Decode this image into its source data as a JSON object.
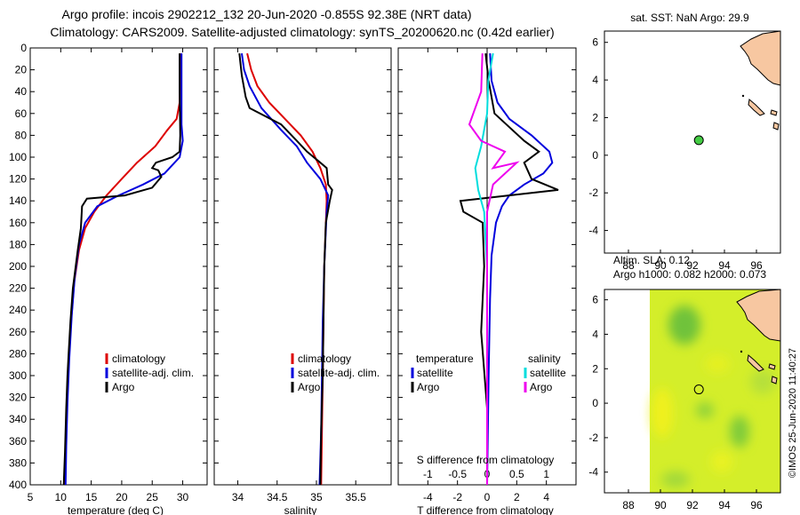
{
  "title": {
    "line1": "Argo profile: incois 2902212_132 20-Jun-2020 -0.855S 92.38E (NRT data)",
    "line2": "Climatology: CARS2009. Satellite-adjusted climatology: synTS_20200620.nc (0.42d earlier)"
  },
  "colors": {
    "climatology": "#dd0000",
    "satellite": "#0000dd",
    "argo": "#000000",
    "sat_salinity": "#00dddd",
    "argo_salinity": "#ee00ee",
    "land": "#f7c7a1",
    "argo_marker": "#44cc44"
  },
  "chart_data": [
    {
      "id": "temperature",
      "type": "line",
      "xlabel": "temperature (deg C)",
      "ylabel": "",
      "xlim": [
        5,
        34
      ],
      "ylim": [
        400,
        0
      ],
      "x_ticks": [
        5,
        10,
        15,
        20,
        25,
        30
      ],
      "y_ticks": [
        0,
        20,
        40,
        60,
        80,
        100,
        120,
        140,
        160,
        180,
        200,
        220,
        240,
        260,
        280,
        300,
        320,
        340,
        360,
        380,
        400
      ],
      "legend": [
        "climatology",
        "satellite-adj. clim.",
        "Argo"
      ],
      "series": [
        {
          "name": "climatology",
          "color": "#dd0000",
          "points": [
            [
              29.6,
              5
            ],
            [
              29.6,
              30
            ],
            [
              29.5,
              50
            ],
            [
              29.0,
              65
            ],
            [
              27.5,
              75
            ],
            [
              25.5,
              90
            ],
            [
              22.5,
              105
            ],
            [
              20.0,
              120
            ],
            [
              17.5,
              135
            ],
            [
              15.5,
              150
            ],
            [
              14.0,
              165
            ],
            [
              13.0,
              185
            ],
            [
              12.2,
              215
            ],
            [
              11.7,
              250
            ],
            [
              11.3,
              290
            ],
            [
              11.0,
              330
            ],
            [
              10.8,
              370
            ],
            [
              10.6,
              400
            ]
          ]
        },
        {
          "name": "satellite-adj. clim.",
          "color": "#0000dd",
          "points": [
            [
              29.8,
              5
            ],
            [
              29.8,
              40
            ],
            [
              29.8,
              70
            ],
            [
              30.0,
              85
            ],
            [
              29.5,
              100
            ],
            [
              27.0,
              115
            ],
            [
              23.5,
              125
            ],
            [
              19.5,
              135
            ],
            [
              16.0,
              145
            ],
            [
              14.0,
              160
            ],
            [
              13.0,
              180
            ],
            [
              12.3,
              210
            ],
            [
              11.8,
              245
            ],
            [
              11.4,
              285
            ],
            [
              11.1,
              325
            ],
            [
              10.9,
              365
            ],
            [
              10.8,
              400
            ]
          ]
        },
        {
          "name": "Argo",
          "color": "#000000",
          "points": [
            [
              29.5,
              5
            ],
            [
              29.5,
              40
            ],
            [
              29.6,
              80
            ],
            [
              29.5,
              95
            ],
            [
              28.3,
              100
            ],
            [
              25.6,
              105
            ],
            [
              25.0,
              110
            ],
            [
              26.0,
              112
            ],
            [
              26.5,
              118
            ],
            [
              25.0,
              128
            ],
            [
              20.5,
              135
            ],
            [
              14.3,
              138
            ],
            [
              13.5,
              145
            ],
            [
              13.3,
              165
            ],
            [
              12.8,
              185
            ],
            [
              12.0,
              220
            ],
            [
              11.6,
              250
            ],
            [
              11.3,
              280
            ],
            [
              11.1,
              300
            ],
            [
              10.9,
              330
            ],
            [
              10.7,
              370
            ],
            [
              10.5,
              400
            ]
          ]
        }
      ]
    },
    {
      "id": "salinity",
      "type": "line",
      "xlabel": "salinity",
      "ylabel": "",
      "xlim": [
        33.7,
        35.95
      ],
      "ylim": [
        400,
        0
      ],
      "x_ticks": [
        34,
        34.5,
        35,
        35.5
      ],
      "y_ticks": [
        0,
        20,
        40,
        60,
        80,
        100,
        120,
        140,
        160,
        180,
        200,
        220,
        240,
        260,
        280,
        300,
        320,
        340,
        360,
        380,
        400
      ],
      "legend": [
        "climatology",
        "satellite-adj. clim.",
        "Argo"
      ],
      "series": [
        {
          "name": "climatology",
          "color": "#dd0000",
          "points": [
            [
              34.12,
              5
            ],
            [
              34.17,
              20
            ],
            [
              34.25,
              35
            ],
            [
              34.4,
              50
            ],
            [
              34.6,
              65
            ],
            [
              34.8,
              80
            ],
            [
              34.95,
              95
            ],
            [
              35.05,
              110
            ],
            [
              35.12,
              125
            ],
            [
              35.13,
              140
            ],
            [
              35.12,
              160
            ],
            [
              35.1,
              200
            ],
            [
              35.09,
              250
            ],
            [
              35.08,
              300
            ],
            [
              35.07,
              350
            ],
            [
              35.06,
              400
            ]
          ]
        },
        {
          "name": "satellite-adj. clim.",
          "color": "#0000dd",
          "points": [
            [
              34.05,
              5
            ],
            [
              34.08,
              20
            ],
            [
              34.15,
              35
            ],
            [
              34.3,
              55
            ],
            [
              34.55,
              75
            ],
            [
              34.75,
              90
            ],
            [
              34.88,
              105
            ],
            [
              35.05,
              120
            ],
            [
              35.15,
              135
            ],
            [
              35.13,
              150
            ],
            [
              35.1,
              200
            ],
            [
              35.08,
              250
            ],
            [
              35.07,
              300
            ],
            [
              35.06,
              350
            ],
            [
              35.04,
              400
            ]
          ]
        },
        {
          "name": "Argo",
          "color": "#000000",
          "points": [
            [
              34.02,
              5
            ],
            [
              34.05,
              25
            ],
            [
              34.1,
              45
            ],
            [
              34.15,
              55
            ],
            [
              34.55,
              70
            ],
            [
              34.75,
              85
            ],
            [
              34.88,
              95
            ],
            [
              35.05,
              105
            ],
            [
              35.13,
              110
            ],
            [
              35.15,
              125
            ],
            [
              35.2,
              130
            ],
            [
              35.17,
              140
            ],
            [
              35.12,
              160
            ],
            [
              35.1,
              200
            ],
            [
              35.09,
              250
            ],
            [
              35.08,
              300
            ],
            [
              35.06,
              350
            ],
            [
              35.05,
              400
            ]
          ]
        }
      ]
    },
    {
      "id": "difference",
      "type": "line",
      "xlabel": "T difference from climatology",
      "xlabel_top": "S difference from climatology",
      "xlim": [
        -6,
        6
      ],
      "x_ticks": [
        -4,
        -2,
        0,
        2,
        4
      ],
      "top_xlim": [
        -1.5,
        1.5
      ],
      "top_ticks": [
        -1,
        -0.5,
        0,
        0.5,
        1
      ],
      "ylim": [
        400,
        0
      ],
      "legend_temperature_title": "temperature",
      "legend_salinity_title": "salinity",
      "legend_temperature": [
        "satellite",
        "Argo"
      ],
      "legend_salinity": [
        "satellite",
        "Argo"
      ],
      "series": [
        {
          "name": "T satellite",
          "axis": "bottom",
          "color": "#0000dd",
          "points": [
            [
              0.2,
              5
            ],
            [
              0.3,
              30
            ],
            [
              0.7,
              50
            ],
            [
              1.5,
              65
            ],
            [
              3.0,
              80
            ],
            [
              4.2,
              95
            ],
            [
              4.4,
              105
            ],
            [
              3.8,
              115
            ],
            [
              2.5,
              125
            ],
            [
              1.5,
              135
            ],
            [
              1.0,
              145
            ],
            [
              0.6,
              160
            ],
            [
              0.3,
              190
            ],
            [
              0.2,
              230
            ],
            [
              0.1,
              300
            ],
            [
              0.0,
              400
            ]
          ]
        },
        {
          "name": "T Argo",
          "axis": "bottom",
          "color": "#000000",
          "points": [
            [
              -0.1,
              5
            ],
            [
              0.1,
              30
            ],
            [
              0.5,
              60
            ],
            [
              2.5,
              85
            ],
            [
              3.5,
              95
            ],
            [
              2.5,
              105
            ],
            [
              3.0,
              120
            ],
            [
              4.8,
              130
            ],
            [
              -1.8,
              140
            ],
            [
              -1.6,
              150
            ],
            [
              -0.3,
              160
            ],
            [
              -0.2,
              200
            ],
            [
              -0.4,
              260
            ],
            [
              0.0,
              330
            ],
            [
              0.0,
              400
            ]
          ]
        },
        {
          "name": "S satellite",
          "axis": "top",
          "color": "#00dddd",
          "points": [
            [
              0.1,
              5
            ],
            [
              0.02,
              30
            ],
            [
              0.0,
              60
            ],
            [
              -0.1,
              90
            ],
            [
              -0.2,
              110
            ],
            [
              -0.15,
              130
            ],
            [
              -0.05,
              150
            ],
            [
              0.0,
              200
            ],
            [
              0.0,
              300
            ],
            [
              0.0,
              400
            ]
          ]
        },
        {
          "name": "S Argo",
          "axis": "top",
          "color": "#ee00ee",
          "points": [
            [
              -0.08,
              5
            ],
            [
              -0.1,
              40
            ],
            [
              -0.3,
              70
            ],
            [
              -0.1,
              85
            ],
            [
              0.3,
              95
            ],
            [
              0.1,
              110
            ],
            [
              0.5,
              105
            ],
            [
              0.1,
              125
            ],
            [
              0.0,
              150
            ],
            [
              0.0,
              200
            ],
            [
              0.0,
              300
            ],
            [
              0.0,
              400
            ]
          ]
        }
      ]
    },
    {
      "id": "sst_map",
      "type": "scatter",
      "title": "sat. SST: NaN Argo: 29.9",
      "xlim": [
        86.5,
        97.5
      ],
      "ylim": [
        -5.2,
        6.6
      ],
      "x_ticks": [
        88,
        90,
        92,
        94,
        96
      ],
      "y_ticks": [
        -4,
        -2,
        0,
        2,
        4,
        6
      ],
      "argo_position": [
        92.38,
        -0.855
      ],
      "marker_position": [
        92.4,
        0.8
      ]
    },
    {
      "id": "sla_map",
      "type": "heatmap",
      "title_line1": "Altim. SLA: 0.12",
      "title_line2": "Argo h1000: 0.082 h2000: 0.073",
      "xlim": [
        86.5,
        97.5
      ],
      "ylim": [
        -5.2,
        6.6
      ],
      "x_ticks": [
        88,
        90,
        92,
        94,
        96
      ],
      "y_ticks": [
        -4,
        -2,
        0,
        2,
        4,
        6
      ],
      "marker_position": [
        92.4,
        0.8
      ]
    }
  ],
  "watermark": "©IMOS 25-Jun-2020 11:40:27"
}
